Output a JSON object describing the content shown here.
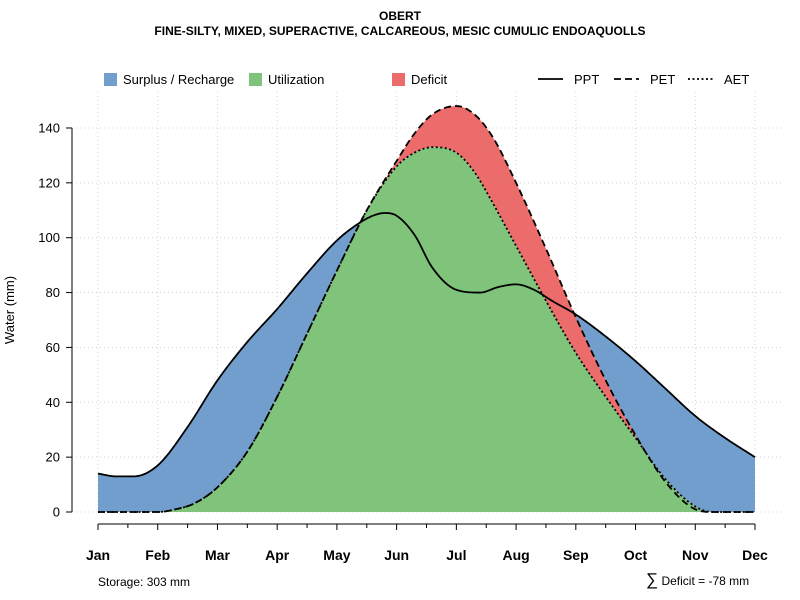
{
  "chart_data": {
    "type": "area",
    "title": "OBERT",
    "subtitle": "FINE-SILTY, MIXED, SUPERACTIVE, CALCAREOUS, MESIC CUMULIC ENDOAQUOLLS",
    "xlabel": "",
    "ylabel": "Water (mm)",
    "categories": [
      "Jan",
      "Feb",
      "Mar",
      "Apr",
      "May",
      "Jun",
      "Jul",
      "Aug",
      "Sep",
      "Oct",
      "Nov",
      "Dec"
    ],
    "ylim": [
      0,
      152
    ],
    "yticks": [
      0,
      20,
      40,
      60,
      80,
      100,
      120,
      140
    ],
    "grid": true,
    "legend_placement": "top",
    "series": [
      {
        "name": "PPT",
        "x": [
          1,
          1.3,
          1.6,
          2,
          2.5,
          3,
          3.5,
          4,
          4.5,
          5,
          5.35,
          5.6,
          5.8,
          6,
          6.3,
          6.6,
          7,
          7.4,
          7.7,
          8,
          8.3,
          8.6,
          9,
          9.5,
          10,
          10.5,
          11,
          11.5,
          12
        ],
        "values": [
          14,
          13,
          13,
          17,
          31,
          48,
          62,
          74,
          87,
          99,
          105,
          108,
          109,
          108,
          101,
          89,
          81,
          80,
          82,
          83,
          81,
          77,
          72,
          64,
          55,
          45,
          35,
          27,
          20
        ]
      },
      {
        "name": "PET",
        "x": [
          1,
          1.5,
          2,
          2.3,
          2.6,
          3,
          3.5,
          4,
          4.5,
          5,
          5.5,
          6,
          6.3,
          6.6,
          7,
          7.3,
          7.6,
          8,
          8.5,
          9,
          9.5,
          10,
          10.5,
          11,
          11.3,
          11.6,
          12
        ],
        "values": [
          0,
          0,
          0,
          1,
          3,
          9,
          22,
          42,
          65,
          88,
          110,
          128,
          138,
          145,
          148,
          145,
          137,
          120,
          96,
          71,
          48,
          28,
          11,
          1,
          0,
          0,
          0
        ]
      },
      {
        "name": "AET",
        "x": [
          1,
          1.5,
          2,
          2.3,
          2.6,
          3,
          3.5,
          4,
          4.5,
          5,
          5.5,
          6,
          6.3,
          6.6,
          7,
          7.3,
          7.6,
          8,
          8.5,
          9,
          9.5,
          10,
          10.5,
          11,
          11.3,
          11.6,
          12
        ],
        "values": [
          0,
          0,
          0,
          1,
          3,
          9,
          22,
          42,
          65,
          88,
          110,
          126,
          131,
          133,
          131,
          124,
          113,
          97,
          77,
          58,
          42,
          27,
          12,
          2,
          0,
          0,
          0
        ]
      }
    ],
    "legend": [
      {
        "label": "Surplus / Recharge",
        "kind": "fill",
        "color": "#729ECE"
      },
      {
        "label": "Utilization",
        "kind": "fill",
        "color": "#7FC47A"
      },
      {
        "label": "Deficit",
        "kind": "fill",
        "color": "#EC6C6C"
      },
      {
        "label": "PPT",
        "kind": "line",
        "dash": "solid"
      },
      {
        "label": "PET",
        "kind": "line",
        "dash": "dashed"
      },
      {
        "label": "AET",
        "kind": "line",
        "dash": "dotted"
      }
    ],
    "colors": {
      "surplus": "#729ECE",
      "utilization": "#7FC47A",
      "deficit": "#EC6C6C",
      "line": "#000000",
      "grid": "#d4d4d4"
    }
  },
  "footer": {
    "storage": "Storage: 303 mm",
    "deficit": "Deficit = -78 mm",
    "sigma": "∑"
  }
}
